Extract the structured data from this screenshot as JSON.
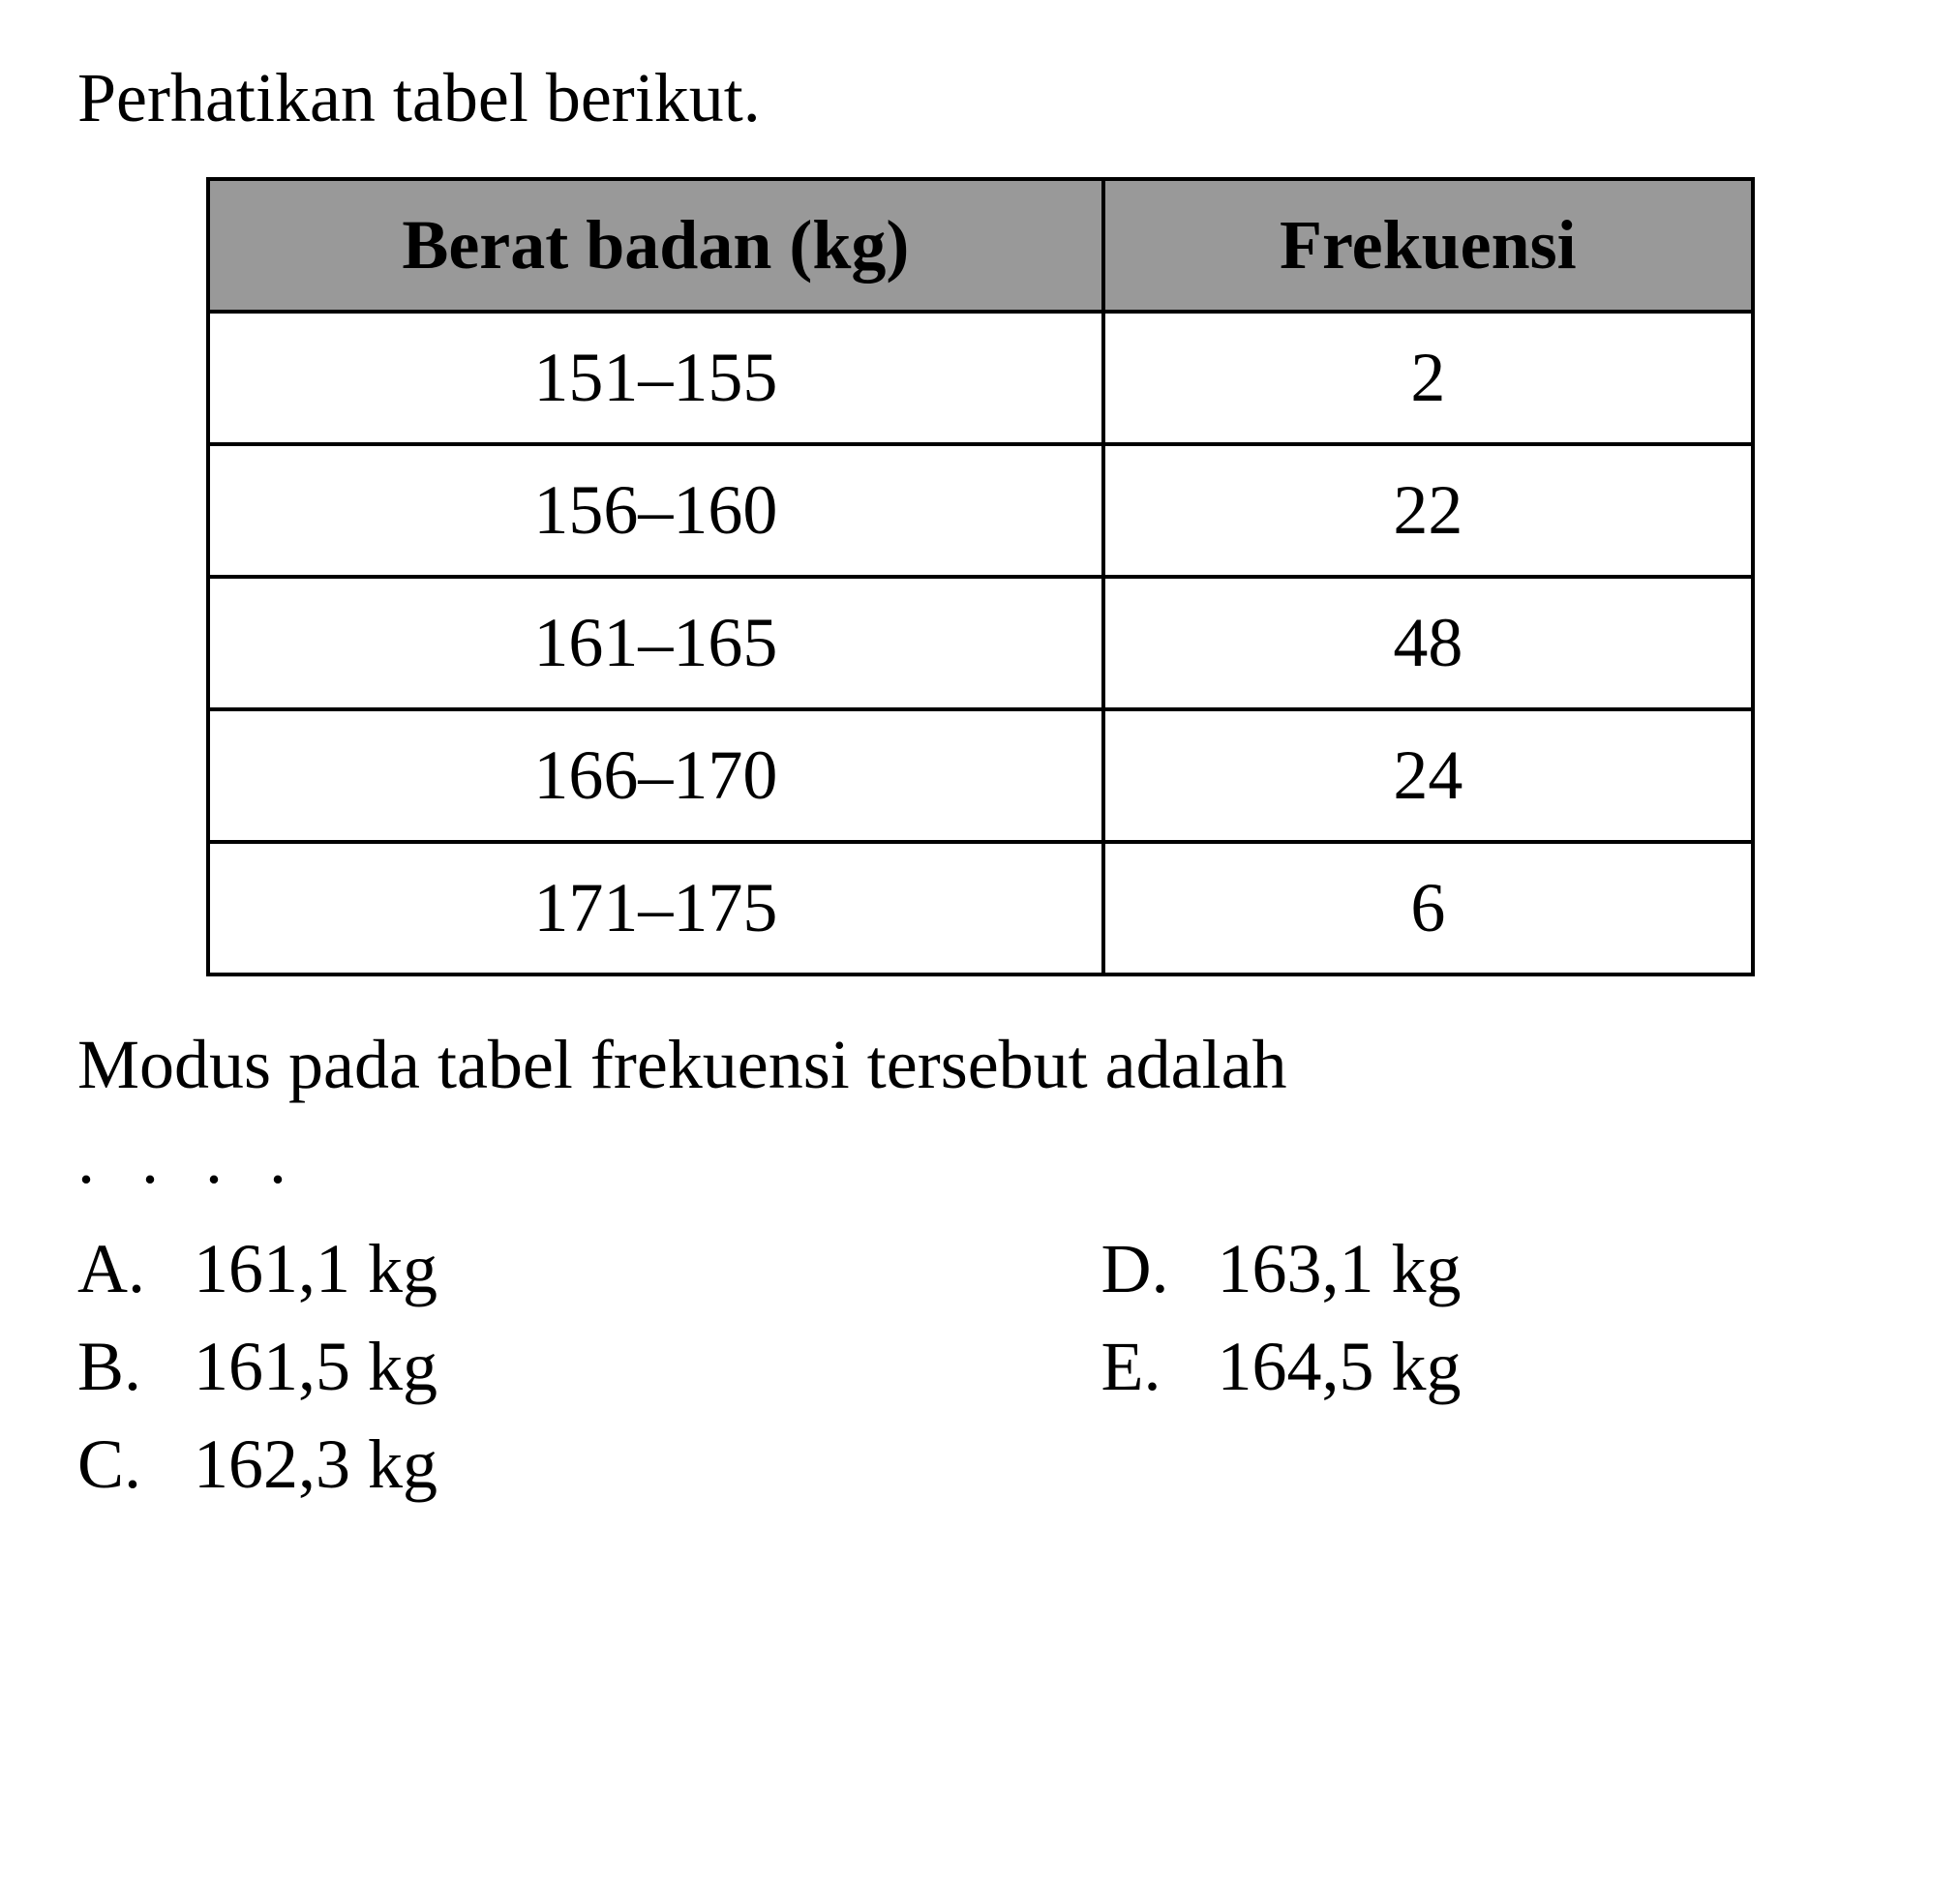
{
  "intro": "Perhatikan tabel berikut.",
  "table": {
    "headers": {
      "col1": "Berat badan (kg)",
      "col2": "Frekuensi"
    },
    "rows": [
      {
        "category": "151–155",
        "frequency": "2"
      },
      {
        "category": "156–160",
        "frequency": "22"
      },
      {
        "category": "161–165",
        "frequency": "48"
      },
      {
        "category": "166–170",
        "frequency": "24"
      },
      {
        "category": "171–175",
        "frequency": "6"
      }
    ],
    "styling": {
      "header_bg": "#999999",
      "cell_bg": "#ffffff",
      "border_color": "#000000",
      "border_width": 4,
      "font_size": 72,
      "col_widths_percent": [
        58,
        42
      ]
    }
  },
  "question": "Modus pada tabel frekuensi tersebut adalah",
  "dots": ". . . .",
  "options": {
    "A": {
      "letter": "A.",
      "text": "161,1 kg"
    },
    "B": {
      "letter": "B.",
      "text": "161,5 kg"
    },
    "C": {
      "letter": "C.",
      "text": "162,3 kg"
    },
    "D": {
      "letter": "D.",
      "text": "163,1 kg"
    },
    "E": {
      "letter": "E.",
      "text": "164,5 kg"
    }
  },
  "styling": {
    "background_color": "#ffffff",
    "text_color": "#000000",
    "font_family": "Times New Roman",
    "body_font_size": 72
  }
}
